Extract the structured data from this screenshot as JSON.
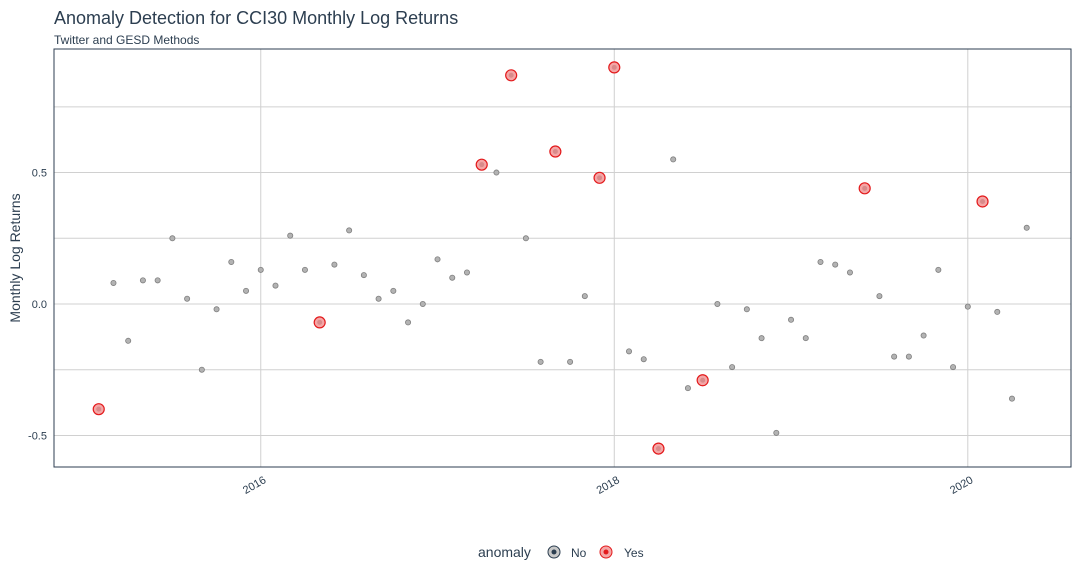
{
  "chart_data": {
    "type": "scatter",
    "title": "Anomaly Detection for CCI30 Monthly Log Returns",
    "subtitle": "Twitter and GESD Methods",
    "xlabel": "",
    "ylabel": "Monthly Log Returns",
    "x_ticks": [
      "2016",
      "2018",
      "2020"
    ],
    "y_ticks": [
      "-0.5",
      "0.0",
      "0.5"
    ],
    "ylim": [
      -0.62,
      0.97
    ],
    "grid": true,
    "legend": {
      "title": "anomaly",
      "placement": "bottom",
      "entries": [
        {
          "label": "No",
          "color": "#2c3e50"
        },
        {
          "label": "Yes",
          "color": "#e31a1c"
        }
      ]
    },
    "colors": {
      "normal_fill": "#b3b3b3",
      "normal_stroke": "#7f7f7f",
      "anomaly_fill": "#f4a6a6",
      "anomaly_stroke": "#e31a1c"
    },
    "points": [
      {
        "date": "2015-02",
        "y": -0.4,
        "anomaly": "Yes"
      },
      {
        "date": "2015-03",
        "y": 0.08,
        "anomaly": "No"
      },
      {
        "date": "2015-04",
        "y": -0.14,
        "anomaly": "No"
      },
      {
        "date": "2015-05",
        "y": 0.09,
        "anomaly": "No"
      },
      {
        "date": "2015-06",
        "y": 0.09,
        "anomaly": "No"
      },
      {
        "date": "2015-07",
        "y": 0.25,
        "anomaly": "No"
      },
      {
        "date": "2015-08",
        "y": 0.02,
        "anomaly": "No"
      },
      {
        "date": "2015-09",
        "y": -0.25,
        "anomaly": "No"
      },
      {
        "date": "2015-10",
        "y": -0.02,
        "anomaly": "No"
      },
      {
        "date": "2015-11",
        "y": 0.16,
        "anomaly": "No"
      },
      {
        "date": "2015-12",
        "y": 0.05,
        "anomaly": "No"
      },
      {
        "date": "2016-01",
        "y": 0.13,
        "anomaly": "No"
      },
      {
        "date": "2016-02",
        "y": 0.07,
        "anomaly": "No"
      },
      {
        "date": "2016-03",
        "y": 0.26,
        "anomaly": "No"
      },
      {
        "date": "2016-04",
        "y": 0.13,
        "anomaly": "No"
      },
      {
        "date": "2016-05",
        "y": -0.07,
        "anomaly": "Yes"
      },
      {
        "date": "2016-06",
        "y": 0.15,
        "anomaly": "No"
      },
      {
        "date": "2016-07",
        "y": 0.28,
        "anomaly": "No"
      },
      {
        "date": "2016-08",
        "y": 0.11,
        "anomaly": "No"
      },
      {
        "date": "2016-09",
        "y": 0.02,
        "anomaly": "No"
      },
      {
        "date": "2016-10",
        "y": 0.05,
        "anomaly": "No"
      },
      {
        "date": "2016-11",
        "y": -0.07,
        "anomaly": "No"
      },
      {
        "date": "2016-12",
        "y": 0.0,
        "anomaly": "No"
      },
      {
        "date": "2017-01",
        "y": 0.17,
        "anomaly": "No"
      },
      {
        "date": "2017-02",
        "y": 0.1,
        "anomaly": "No"
      },
      {
        "date": "2017-03",
        "y": 0.12,
        "anomaly": "No"
      },
      {
        "date": "2017-04",
        "y": 0.53,
        "anomaly": "Yes"
      },
      {
        "date": "2017-05",
        "y": 0.5,
        "anomaly": "No"
      },
      {
        "date": "2017-06",
        "y": 0.87,
        "anomaly": "Yes"
      },
      {
        "date": "2017-07",
        "y": 0.25,
        "anomaly": "No"
      },
      {
        "date": "2017-08",
        "y": -0.22,
        "anomaly": "No"
      },
      {
        "date": "2017-09",
        "y": 0.58,
        "anomaly": "Yes"
      },
      {
        "date": "2017-10",
        "y": -0.22,
        "anomaly": "No"
      },
      {
        "date": "2017-11",
        "y": 0.03,
        "anomaly": "No"
      },
      {
        "date": "2017-12",
        "y": 0.48,
        "anomaly": "Yes"
      },
      {
        "date": "2018-01",
        "y": 0.9,
        "anomaly": "Yes"
      },
      {
        "date": "2018-02",
        "y": -0.18,
        "anomaly": "No"
      },
      {
        "date": "2018-03",
        "y": -0.21,
        "anomaly": "No"
      },
      {
        "date": "2018-04",
        "y": -0.55,
        "anomaly": "Yes"
      },
      {
        "date": "2018-05",
        "y": 0.55,
        "anomaly": "No"
      },
      {
        "date": "2018-06",
        "y": -0.32,
        "anomaly": "No"
      },
      {
        "date": "2018-07",
        "y": -0.29,
        "anomaly": "Yes"
      },
      {
        "date": "2018-08",
        "y": 0.0,
        "anomaly": "No"
      },
      {
        "date": "2018-09",
        "y": -0.24,
        "anomaly": "No"
      },
      {
        "date": "2018-10",
        "y": -0.02,
        "anomaly": "No"
      },
      {
        "date": "2018-11",
        "y": -0.13,
        "anomaly": "No"
      },
      {
        "date": "2018-12",
        "y": -0.49,
        "anomaly": "No"
      },
      {
        "date": "2019-01",
        "y": -0.06,
        "anomaly": "No"
      },
      {
        "date": "2019-02",
        "y": -0.13,
        "anomaly": "No"
      },
      {
        "date": "2019-03",
        "y": 0.16,
        "anomaly": "No"
      },
      {
        "date": "2019-04",
        "y": 0.15,
        "anomaly": "No"
      },
      {
        "date": "2019-05",
        "y": 0.12,
        "anomaly": "No"
      },
      {
        "date": "2019-06",
        "y": 0.44,
        "anomaly": "Yes"
      },
      {
        "date": "2019-07",
        "y": 0.03,
        "anomaly": "No"
      },
      {
        "date": "2019-08",
        "y": -0.2,
        "anomaly": "No"
      },
      {
        "date": "2019-09",
        "y": -0.2,
        "anomaly": "No"
      },
      {
        "date": "2019-10",
        "y": -0.12,
        "anomaly": "No"
      },
      {
        "date": "2019-11",
        "y": 0.13,
        "anomaly": "No"
      },
      {
        "date": "2019-12",
        "y": -0.24,
        "anomaly": "No"
      },
      {
        "date": "2020-01",
        "y": -0.01,
        "anomaly": "No"
      },
      {
        "date": "2020-02",
        "y": 0.39,
        "anomaly": "Yes"
      },
      {
        "date": "2020-03",
        "y": -0.03,
        "anomaly": "No"
      },
      {
        "date": "2020-04",
        "y": -0.36,
        "anomaly": "No"
      },
      {
        "date": "2020-05",
        "y": 0.29,
        "anomaly": "No"
      }
    ]
  }
}
